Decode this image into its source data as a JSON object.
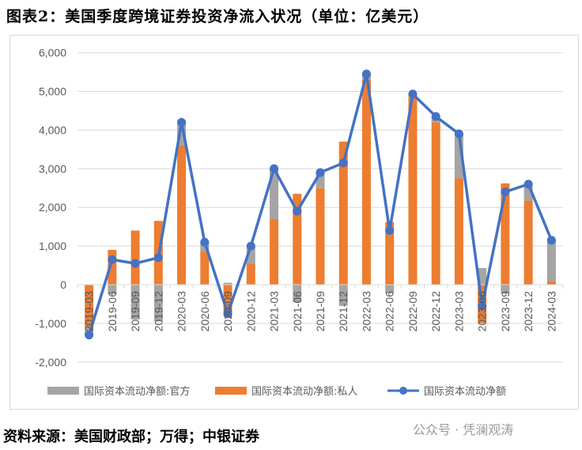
{
  "title": "图表2：美国季度跨境证券投资净流入状况（单位：亿美元）",
  "footer": "资料来源：美国财政部；万得；中银证券",
  "watermark": "公众号 · 凭澜观涛",
  "chart_data": {
    "type": "bar",
    "stacked": true,
    "categories": [
      "2019-03",
      "2019-06",
      "2019-09",
      "2019-12",
      "2020-03",
      "2020-06",
      "2020-09",
      "2020-12",
      "2021-03",
      "2021-06",
      "2021-09",
      "2021-12",
      "2022-03",
      "2022-06",
      "2022-09",
      "2022-12",
      "2023-03",
      "2023-06",
      "2023-09",
      "2023-12",
      "2024-03"
    ],
    "series": [
      {
        "name": "国际资本流动净额:官方",
        "type": "bar",
        "color": "#a5a5a5",
        "values": [
          -200,
          -250,
          -900,
          -950,
          600,
          250,
          50,
          450,
          1300,
          -450,
          400,
          -550,
          150,
          -220,
          80,
          150,
          1150,
          430,
          -230,
          420,
          1050
        ]
      },
      {
        "name": "国际资本流动净额:私人",
        "type": "bar",
        "color": "#ed7d31",
        "values": [
          -1100,
          900,
          1400,
          1650,
          3600,
          850,
          -800,
          550,
          1700,
          2350,
          2500,
          3700,
          5300,
          1620,
          4850,
          4200,
          2750,
          -1000,
          2620,
          2180,
          100
        ]
      },
      {
        "name": "国际资本流动净额",
        "type": "line",
        "color": "#4472c4",
        "values": [
          -1300,
          650,
          550,
          700,
          4200,
          1100,
          -750,
          1000,
          3000,
          1900,
          2900,
          3150,
          5450,
          1400,
          4930,
          4350,
          3900,
          -550,
          2400,
          2600,
          1150
        ]
      }
    ],
    "ylim": [
      -2000,
      6000
    ],
    "yticks": [
      "-2,000",
      "-1,000",
      "0",
      "1,000",
      "2,000",
      "3,000",
      "4,000",
      "5,000",
      "6,000"
    ],
    "legend": "bottom",
    "grid": true
  }
}
